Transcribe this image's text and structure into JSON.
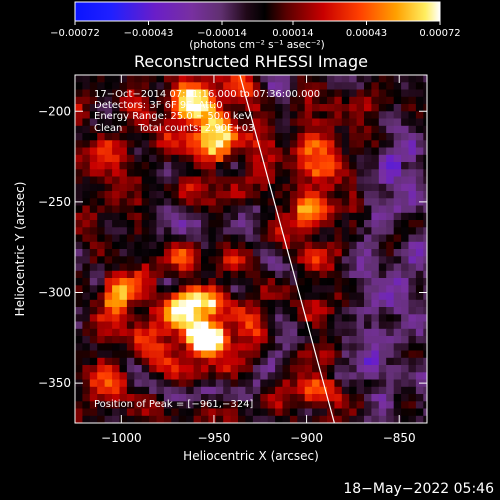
{
  "chart_data": {
    "type": "heatmap",
    "title": "Reconstructed RHESSI Image",
    "xlabel": "Heliocentric X (arcsec)",
    "ylabel": "Heliocentric Y (arcsec)",
    "xlim": [
      -1025,
      -835
    ],
    "ylim": [
      -372,
      -180
    ],
    "x_ticks": [
      {
        "value": -1000,
        "label": "−1000"
      },
      {
        "value": -950,
        "label": "−950"
      },
      {
        "value": -900,
        "label": "−900"
      },
      {
        "value": -850,
        "label": "−850"
      }
    ],
    "y_ticks": [
      {
        "value": -200,
        "label": "−200"
      },
      {
        "value": -250,
        "label": "−250"
      },
      {
        "value": -300,
        "label": "−300"
      },
      {
        "value": -350,
        "label": "−350"
      }
    ],
    "colorbar": {
      "range": [
        -0.00072,
        0.00072
      ],
      "tick_values": [
        -0.00072,
        -0.00043,
        -0.00014,
        0.00014,
        0.00043,
        0.00072
      ],
      "tick_labels": [
        "−0.00072",
        "−0.00043",
        "−0.00014",
        "0.00014",
        "0.00043",
        "0.00072"
      ],
      "unit_label": "(photons cm⁻² s⁻¹ asec⁻²)"
    },
    "annotations": [
      "17−Oct−2014 07:31:16.000 to 07:36:00.000",
      "Detectors: 3F 6F 9F, Att:0",
      "Energy Range: 25.0 − 50.0 keV",
      "Clean     Total counts: 2.90E+03"
    ],
    "peak_label": "Position of Peak = [−961,−324]",
    "peak": [
      -961,
      -324
    ],
    "limb_line": [
      [
        -936,
        -180
      ],
      [
        -885,
        -372
      ]
    ],
    "sources": [
      {
        "x": -962,
        "y": -195,
        "sx": 13,
        "sy": 11,
        "amp": 0.0006
      },
      {
        "x": -948,
        "y": -215,
        "sx": 11,
        "sy": 14,
        "amp": 0.0006
      },
      {
        "x": -963,
        "y": -308,
        "sx": 16,
        "sy": 13,
        "amp": 0.00058
      },
      {
        "x": -955,
        "y": -325,
        "sx": 12,
        "sy": 9,
        "amp": 0.00072
      },
      {
        "x": -1003,
        "y": -300,
        "sx": 8,
        "sy": 11,
        "amp": 0.0004
      },
      {
        "x": -893,
        "y": -225,
        "sx": 14,
        "sy": 12,
        "amp": 0.00048
      },
      {
        "x": -897,
        "y": -259,
        "sx": 10,
        "sy": 10,
        "amp": 0.00048
      },
      {
        "x": -893,
        "y": -355,
        "sx": 10,
        "sy": 9,
        "amp": 0.00045
      },
      {
        "x": -897,
        "y": -300,
        "sx": 10,
        "sy": 12,
        "amp": 0.0002
      },
      {
        "x": -862,
        "y": -193,
        "sx": 13,
        "sy": 9,
        "amp": 0.00026
      },
      {
        "x": -1008,
        "y": -348,
        "sx": 13,
        "sy": 16,
        "amp": 0.00028
      },
      {
        "x": -1008,
        "y": -228,
        "sx": 11,
        "sy": 15,
        "amp": 0.0003
      },
      {
        "x": -855,
        "y": -232,
        "sx": 6,
        "sy": 10,
        "amp": -0.00035
      },
      {
        "x": -850,
        "y": -300,
        "sx": 9,
        "sy": 10,
        "amp": -0.00022
      },
      {
        "x": -865,
        "y": -340,
        "sx": 7,
        "sy": 7,
        "amp": -0.0003
      }
    ]
  },
  "footer": {
    "timestamp": "18−May−2022 05:46"
  }
}
